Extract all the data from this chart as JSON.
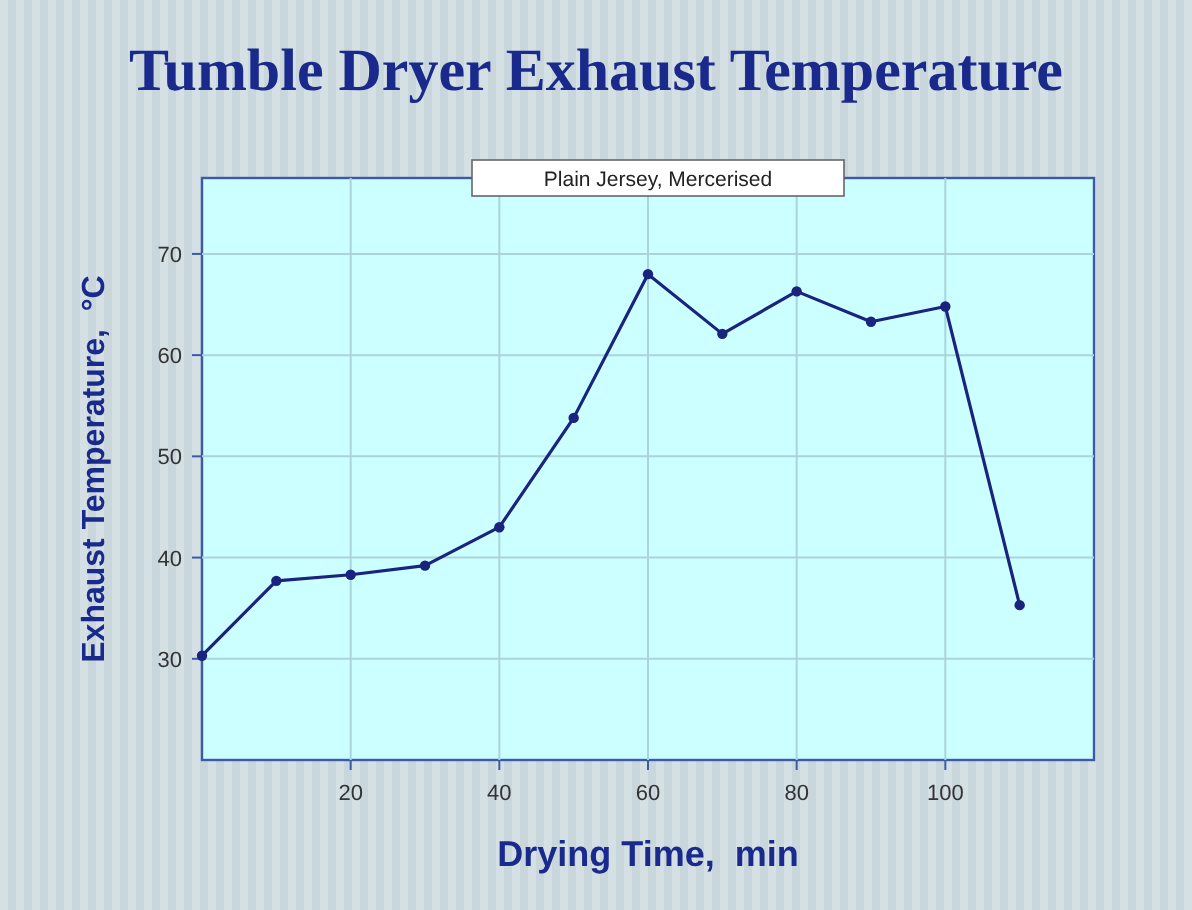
{
  "chart_data": {
    "type": "line",
    "title": "Tumble Dryer Exhaust Temperature",
    "subtitle": "Plain Jersey, Mercerised",
    "xlabel": "Drying Time,  min",
    "ylabel": "Exhaust Temperature,  °C",
    "x": [
      0,
      10,
      20,
      30,
      40,
      50,
      60,
      70,
      80,
      90,
      100,
      110
    ],
    "series": [
      {
        "color": "#1a237e",
        "values": [
          30.3,
          37.7,
          38.3,
          39.2,
          43,
          53.8,
          68,
          62.1,
          66.3,
          63.3,
          64.8,
          35.3
        ]
      }
    ],
    "xlim": [
      0,
      120
    ],
    "xticks": [
      20,
      40,
      60,
      80,
      100
    ],
    "ylim": [
      20,
      77.5
    ],
    "yticks": [
      30,
      40,
      50,
      60,
      70
    ],
    "grid": true,
    "marker": "circle",
    "line_style": "solid"
  }
}
